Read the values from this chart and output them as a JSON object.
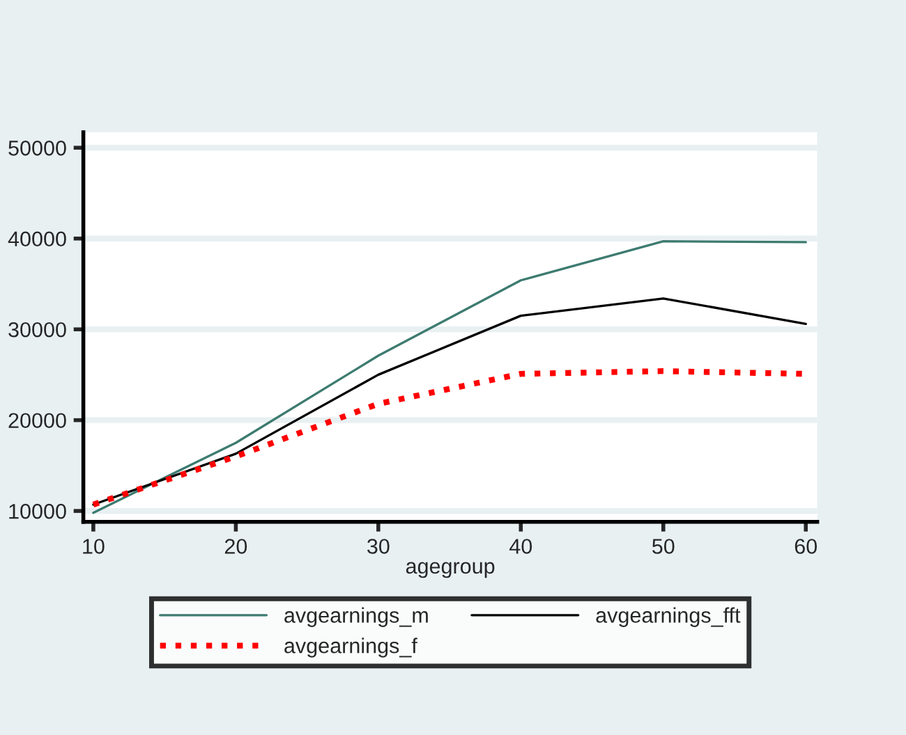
{
  "chart_data": {
    "type": "line",
    "xlabel": "agegroup",
    "x": [
      10,
      20,
      30,
      40,
      50,
      60
    ],
    "series": [
      {
        "name": "avgearnings_m",
        "color": "#3d7b70",
        "line_style": "solid",
        "values": [
          9800,
          17500,
          27100,
          35400,
          39700,
          39600
        ]
      },
      {
        "name": "avgearnings_fft",
        "color": "#000000",
        "line_style": "solid",
        "values": [
          10700,
          16300,
          25000,
          31500,
          33400,
          30600
        ]
      },
      {
        "name": "avgearnings_f",
        "color": "#ff0000",
        "line_style": "dotted",
        "values": [
          10700,
          16000,
          21800,
          25100,
          25400,
          25100
        ]
      }
    ],
    "xlim": [
      9.3,
      60.8
    ],
    "ylim": [
      8800,
      51700
    ],
    "xticks": [
      10,
      20,
      30,
      40,
      50,
      60
    ],
    "yticks": [
      10000,
      20000,
      30000,
      40000,
      50000
    ],
    "grid": "y",
    "legend": "bottom",
    "marker": "none"
  }
}
